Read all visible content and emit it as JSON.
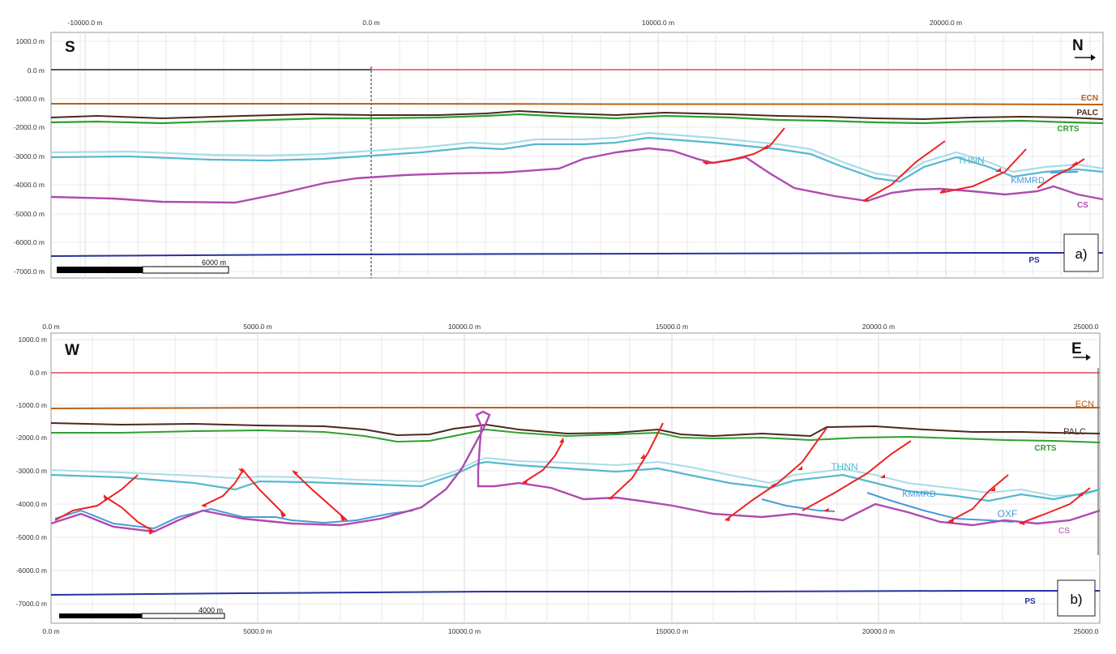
{
  "figures": [
    {
      "id": "a",
      "tag": "a)",
      "orientation": {
        "left": "S",
        "right": "N"
      },
      "x_ticks": [
        "-10000.0 m",
        "0.0 m",
        "10000.0 m",
        "20000.0 m"
      ],
      "y_ticks": [
        "1000.0 m",
        "0.0 m",
        "-1000.0 m",
        "-2000.0 m",
        "-3000.0 m",
        "-4000.0 m",
        "-5000.0 m",
        "-6000.0 m",
        "-7000.0 m"
      ],
      "scale_bar": "6000 m",
      "horizons": [
        {
          "name": "ECN",
          "color": "#b8621a"
        },
        {
          "name": "PALC",
          "color": "#4a2a1c"
        },
        {
          "name": "CRTS",
          "color": "#2ea02e"
        },
        {
          "name": "THNN",
          "color": "#55b8d0"
        },
        {
          "name": "KMMRD",
          "color": "#4a9ad8"
        },
        {
          "name": "CS",
          "color": "#b04ab0"
        },
        {
          "name": "PS",
          "color": "#2a30a0"
        }
      ]
    },
    {
      "id": "b",
      "tag": "b)",
      "orientation": {
        "left": "W",
        "right": "E"
      },
      "x_ticks": [
        "0.0 m",
        "5000.0 m",
        "10000.0 m",
        "15000.0 m",
        "20000.0 m",
        "25000.0"
      ],
      "y_ticks": [
        "1000.0 m",
        "0.0 m",
        "-1000.0 m",
        "-2000.0 m",
        "-3000.0 m",
        "-4000.0 m",
        "-5000.0 m",
        "-6000.0 m",
        "-7000.0 m"
      ],
      "scale_bar": "4000 m",
      "horizons": [
        {
          "name": "ECN",
          "color": "#b8621a"
        },
        {
          "name": "PALC",
          "color": "#4a2a1c"
        },
        {
          "name": "CRTS",
          "color": "#2ea02e"
        },
        {
          "name": "THNN",
          "color": "#55b8d0"
        },
        {
          "name": "KMMRD",
          "color": "#4a9ad8"
        },
        {
          "name": "OXF",
          "color": "#4a9ad8"
        },
        {
          "name": "CS",
          "color": "#b04ab0"
        },
        {
          "name": "PS",
          "color": "#2a30a0"
        }
      ]
    }
  ],
  "colors": {
    "sea_level": "#e04a5a",
    "fault": "#ee2222",
    "thnn_top": "#a8dce8",
    "thnn_base": "#55b8d0",
    "kmmrd": "#4a9ad8",
    "grid": "#e8e8e8"
  }
}
